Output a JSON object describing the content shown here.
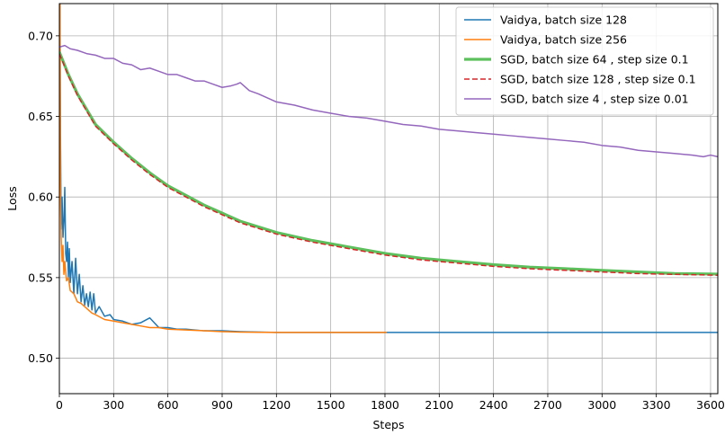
{
  "chart_data": {
    "type": "line",
    "title": "",
    "xlabel": "Steps",
    "ylabel": "Loss",
    "xlim": [
      0,
      3640
    ],
    "ylim": [
      0.478,
      0.72
    ],
    "xticks": [
      0,
      300,
      600,
      900,
      1200,
      1500,
      1800,
      2100,
      2400,
      2700,
      3000,
      3300,
      3600
    ],
    "yticks": [
      0.5,
      0.55,
      0.6,
      0.65,
      0.7
    ],
    "ytick_labels": [
      "0.50",
      "0.55",
      "0.60",
      "0.65",
      "0.70"
    ],
    "grid": true,
    "legend_position": "top-right",
    "series": [
      {
        "name": "Vaidya, batch size 128",
        "color": "#1f77b4",
        "dash": "solid",
        "points": [
          [
            0,
            0.69
          ],
          [
            3,
            0.72
          ],
          [
            6,
            0.64
          ],
          [
            10,
            0.58
          ],
          [
            15,
            0.6
          ],
          [
            20,
            0.575
          ],
          [
            25,
            0.585
          ],
          [
            30,
            0.606
          ],
          [
            35,
            0.565
          ],
          [
            40,
            0.56
          ],
          [
            45,
            0.572
          ],
          [
            50,
            0.55
          ],
          [
            55,
            0.568
          ],
          [
            60,
            0.547
          ],
          [
            70,
            0.56
          ],
          [
            80,
            0.54
          ],
          [
            90,
            0.562
          ],
          [
            100,
            0.54
          ],
          [
            110,
            0.552
          ],
          [
            120,
            0.535
          ],
          [
            130,
            0.545
          ],
          [
            140,
            0.533
          ],
          [
            150,
            0.54
          ],
          [
            160,
            0.532
          ],
          [
            170,
            0.541
          ],
          [
            180,
            0.53
          ],
          [
            190,
            0.54
          ],
          [
            200,
            0.528
          ],
          [
            220,
            0.532
          ],
          [
            250,
            0.526
          ],
          [
            280,
            0.527
          ],
          [
            300,
            0.524
          ],
          [
            350,
            0.523
          ],
          [
            400,
            0.521
          ],
          [
            450,
            0.522
          ],
          [
            500,
            0.525
          ],
          [
            550,
            0.519
          ],
          [
            600,
            0.519
          ],
          [
            650,
            0.518
          ],
          [
            700,
            0.518
          ],
          [
            800,
            0.517
          ],
          [
            900,
            0.517
          ],
          [
            1000,
            0.5165
          ],
          [
            1200,
            0.516
          ],
          [
            1500,
            0.516
          ],
          [
            1800,
            0.516
          ],
          [
            2100,
            0.516
          ],
          [
            2400,
            0.516
          ],
          [
            2700,
            0.516
          ],
          [
            3000,
            0.516
          ],
          [
            3300,
            0.516
          ],
          [
            3640,
            0.516
          ]
        ]
      },
      {
        "name": "Vaidya, batch size 256",
        "color": "#ff7f0e",
        "dash": "solid",
        "points": [
          [
            0,
            0.68
          ],
          [
            3,
            0.72
          ],
          [
            6,
            0.61
          ],
          [
            10,
            0.575
          ],
          [
            15,
            0.56
          ],
          [
            20,
            0.57
          ],
          [
            25,
            0.552
          ],
          [
            30,
            0.56
          ],
          [
            40,
            0.548
          ],
          [
            50,
            0.55
          ],
          [
            60,
            0.542
          ],
          [
            80,
            0.54
          ],
          [
            100,
            0.535
          ],
          [
            120,
            0.534
          ],
          [
            150,
            0.531
          ],
          [
            180,
            0.528
          ],
          [
            200,
            0.527
          ],
          [
            250,
            0.524
          ],
          [
            300,
            0.523
          ],
          [
            350,
            0.522
          ],
          [
            400,
            0.521
          ],
          [
            450,
            0.52
          ],
          [
            500,
            0.519
          ],
          [
            550,
            0.519
          ],
          [
            600,
            0.518
          ],
          [
            700,
            0.5175
          ],
          [
            800,
            0.517
          ],
          [
            900,
            0.5165
          ],
          [
            1000,
            0.5162
          ],
          [
            1200,
            0.516
          ],
          [
            1500,
            0.516
          ],
          [
            1810,
            0.516
          ]
        ]
      },
      {
        "name": "SGD, batch size 64 , step size 0.1",
        "color": "#5cc05c",
        "dash": "solid",
        "width": 3.2,
        "points": [
          [
            0,
            0.69
          ],
          [
            50,
            0.676
          ],
          [
            100,
            0.664
          ],
          [
            200,
            0.645
          ],
          [
            300,
            0.634
          ],
          [
            400,
            0.624
          ],
          [
            500,
            0.615
          ],
          [
            600,
            0.607
          ],
          [
            700,
            0.601
          ],
          [
            800,
            0.595
          ],
          [
            900,
            0.59
          ],
          [
            1000,
            0.585
          ],
          [
            1200,
            0.578
          ],
          [
            1400,
            0.573
          ],
          [
            1600,
            0.569
          ],
          [
            1800,
            0.565
          ],
          [
            2000,
            0.562
          ],
          [
            2200,
            0.56
          ],
          [
            2400,
            0.558
          ],
          [
            2600,
            0.5565
          ],
          [
            2800,
            0.5555
          ],
          [
            3000,
            0.5545
          ],
          [
            3200,
            0.5535
          ],
          [
            3400,
            0.5525
          ],
          [
            3640,
            0.5522
          ]
        ]
      },
      {
        "name": "SGD, batch size 128 , step size 0.1",
        "color": "#d62728",
        "dash": "dashed",
        "points": [
          [
            0,
            0.689
          ],
          [
            50,
            0.675
          ],
          [
            100,
            0.663
          ],
          [
            200,
            0.644
          ],
          [
            300,
            0.633
          ],
          [
            400,
            0.623
          ],
          [
            500,
            0.614
          ],
          [
            600,
            0.606
          ],
          [
            700,
            0.6
          ],
          [
            800,
            0.594
          ],
          [
            900,
            0.589
          ],
          [
            1000,
            0.584
          ],
          [
            1200,
            0.577
          ],
          [
            1400,
            0.572
          ],
          [
            1600,
            0.568
          ],
          [
            1800,
            0.564
          ],
          [
            2000,
            0.561
          ],
          [
            2200,
            0.559
          ],
          [
            2400,
            0.557
          ],
          [
            2600,
            0.5555
          ],
          [
            2800,
            0.5545
          ],
          [
            3000,
            0.5535
          ],
          [
            3200,
            0.5525
          ],
          [
            3400,
            0.552
          ],
          [
            3640,
            0.5515
          ]
        ]
      },
      {
        "name": "SGD, batch size 4 , step size 0.01",
        "color": "#9467bd",
        "dash": "solid",
        "points": [
          [
            0,
            0.693
          ],
          [
            30,
            0.694
          ],
          [
            60,
            0.692
          ],
          [
            100,
            0.691
          ],
          [
            150,
            0.689
          ],
          [
            200,
            0.688
          ],
          [
            250,
            0.686
          ],
          [
            300,
            0.686
          ],
          [
            350,
            0.683
          ],
          [
            400,
            0.682
          ],
          [
            450,
            0.679
          ],
          [
            500,
            0.68
          ],
          [
            550,
            0.678
          ],
          [
            600,
            0.676
          ],
          [
            650,
            0.676
          ],
          [
            700,
            0.674
          ],
          [
            750,
            0.672
          ],
          [
            800,
            0.672
          ],
          [
            850,
            0.67
          ],
          [
            900,
            0.668
          ],
          [
            950,
            0.669
          ],
          [
            980,
            0.67
          ],
          [
            1000,
            0.671
          ],
          [
            1020,
            0.669
          ],
          [
            1050,
            0.666
          ],
          [
            1100,
            0.664
          ],
          [
            1200,
            0.659
          ],
          [
            1300,
            0.657
          ],
          [
            1400,
            0.654
          ],
          [
            1500,
            0.652
          ],
          [
            1600,
            0.65
          ],
          [
            1700,
            0.649
          ],
          [
            1800,
            0.647
          ],
          [
            1900,
            0.645
          ],
          [
            2000,
            0.644
          ],
          [
            2100,
            0.642
          ],
          [
            2200,
            0.641
          ],
          [
            2300,
            0.64
          ],
          [
            2400,
            0.639
          ],
          [
            2500,
            0.638
          ],
          [
            2600,
            0.637
          ],
          [
            2700,
            0.636
          ],
          [
            2800,
            0.635
          ],
          [
            2900,
            0.634
          ],
          [
            3000,
            0.632
          ],
          [
            3100,
            0.631
          ],
          [
            3200,
            0.629
          ],
          [
            3300,
            0.628
          ],
          [
            3400,
            0.627
          ],
          [
            3500,
            0.626
          ],
          [
            3560,
            0.625
          ],
          [
            3600,
            0.626
          ],
          [
            3640,
            0.625
          ]
        ]
      }
    ]
  }
}
